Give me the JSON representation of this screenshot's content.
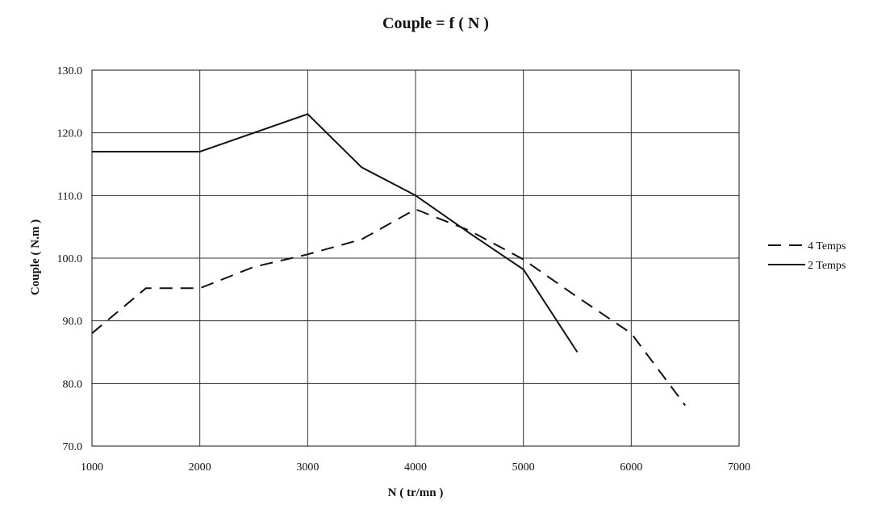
{
  "chart_data": {
    "type": "line",
    "title": "Couple = f ( N )",
    "xlabel": "N ( tr/mn )",
    "ylabel": "Couple ( N.m )",
    "xlim": [
      1000,
      7000
    ],
    "ylim": [
      70,
      130
    ],
    "x_ticks": [
      "1000",
      "2000",
      "3000",
      "4000",
      "5000",
      "6000",
      "7000"
    ],
    "y_ticks": [
      "70.0",
      "80.0",
      "90.0",
      "100.0",
      "110.0",
      "120.0",
      "130.0"
    ],
    "x_tick_values": [
      1000,
      2000,
      3000,
      4000,
      5000,
      6000,
      7000
    ],
    "y_tick_values": [
      70,
      80,
      90,
      100,
      110,
      120,
      130
    ],
    "grid": true,
    "legend_position": "right",
    "series": [
      {
        "name": "4 Temps",
        "style": "dashed",
        "color": "#111111",
        "x": [
          1000,
          1500,
          2000,
          2500,
          3000,
          3500,
          4000,
          4500,
          5000,
          5500,
          6000,
          6500
        ],
        "y": [
          88,
          95.2,
          95.2,
          98.6,
          100.6,
          103,
          107.8,
          104.4,
          99.8,
          93.8,
          88,
          76.5
        ]
      },
      {
        "name": "2 Temps",
        "style": "solid",
        "color": "#111111",
        "x": [
          1000,
          2000,
          3000,
          3500,
          4000,
          4500,
          5000,
          5500
        ],
        "y": [
          117,
          117,
          123,
          114.5,
          110,
          104,
          98.2,
          85
        ]
      }
    ]
  }
}
